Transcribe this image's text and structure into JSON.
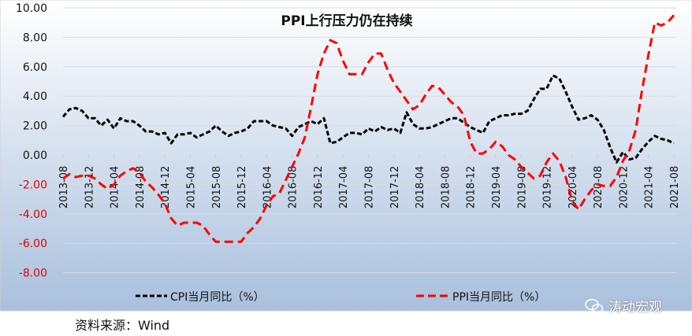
{
  "chart_data": {
    "type": "line",
    "title": "PPI上行压力仍在持续",
    "start": "2013-08",
    "x_tick_labels": [
      "2013-08",
      "2013-12",
      "2014-04",
      "2014-08",
      "2014-12",
      "2015-04",
      "2015-08",
      "2015-12",
      "2016-04",
      "2016-08",
      "2016-12",
      "2017-04",
      "2017-08",
      "2017-12",
      "2018-04",
      "2018-08",
      "2018-12",
      "2019-04",
      "2019-08",
      "2019-12",
      "2020-04",
      "2020-08",
      "2020-12",
      "2021-04",
      "2021-08"
    ],
    "y_ticks": [
      "10.00",
      "8.00",
      "6.00",
      "4.00",
      "2.00",
      "0.00",
      "-2.00",
      "-4.00",
      "-6.00",
      "-8.00"
    ],
    "ylim": [
      -8,
      10
    ],
    "grid": true,
    "legend_position": "bottom",
    "series": [
      {
        "name": "CPI当月同比（%）",
        "color": "#000000",
        "values": [
          2.6,
          3.1,
          3.2,
          3.0,
          2.5,
          2.5,
          2.0,
          2.4,
          1.8,
          2.5,
          2.3,
          2.3,
          2.0,
          1.6,
          1.6,
          1.4,
          1.5,
          0.8,
          1.4,
          1.4,
          1.5,
          1.2,
          1.4,
          1.6,
          2.0,
          1.6,
          1.3,
          1.5,
          1.6,
          1.8,
          2.3,
          2.3,
          2.3,
          2.0,
          1.9,
          1.8,
          1.3,
          1.9,
          2.1,
          2.3,
          2.1,
          2.5,
          0.8,
          0.9,
          1.2,
          1.5,
          1.5,
          1.4,
          1.8,
          1.6,
          1.9,
          1.7,
          1.8,
          1.5,
          2.9,
          2.1,
          1.8,
          1.8,
          1.9,
          2.1,
          2.3,
          2.5,
          2.5,
          2.2,
          1.9,
          1.7,
          1.5,
          2.3,
          2.5,
          2.7,
          2.7,
          2.8,
          2.8,
          3.0,
          3.8,
          4.5,
          4.5,
          5.4,
          5.2,
          4.3,
          3.3,
          2.4,
          2.5,
          2.7,
          2.4,
          1.7,
          0.5,
          -0.5,
          0.2,
          -0.3,
          -0.2,
          0.4,
          0.9,
          1.3,
          1.1,
          1.0,
          0.8
        ]
      },
      {
        "name": "PPI当月同比（%）",
        "color": "#ff0000",
        "values": [
          -1.6,
          -1.3,
          -1.5,
          -1.4,
          -1.4,
          -1.6,
          -2.0,
          -2.3,
          -2.0,
          -1.4,
          -1.1,
          -0.9,
          -1.2,
          -1.8,
          -2.2,
          -2.7,
          -3.3,
          -4.3,
          -4.8,
          -4.6,
          -4.6,
          -4.6,
          -4.8,
          -5.4,
          -5.9,
          -5.9,
          -5.9,
          -5.9,
          -5.9,
          -5.3,
          -4.9,
          -4.3,
          -3.4,
          -2.8,
          -2.6,
          -1.7,
          -0.8,
          0.1,
          1.2,
          3.3,
          5.5,
          6.9,
          7.8,
          7.6,
          6.4,
          5.5,
          5.5,
          5.5,
          6.3,
          6.9,
          6.9,
          5.8,
          4.9,
          4.3,
          3.7,
          3.1,
          3.4,
          4.1,
          4.7,
          4.6,
          4.1,
          3.6,
          3.3,
          2.7,
          0.9,
          0.1,
          0.1,
          0.4,
          0.9,
          0.6,
          0.0,
          -0.3,
          -0.8,
          -1.2,
          -1.6,
          -1.4,
          -0.5,
          0.1,
          -0.4,
          -1.5,
          -3.1,
          -3.7,
          -3.0,
          -2.4,
          -2.0,
          -2.1,
          -2.1,
          -1.5,
          -0.4,
          0.3,
          1.7,
          4.4,
          6.8,
          9.0,
          8.8,
          9.0,
          9.5
        ]
      }
    ]
  },
  "source": "资料来源：Wind",
  "watermark": "涛动宏观"
}
